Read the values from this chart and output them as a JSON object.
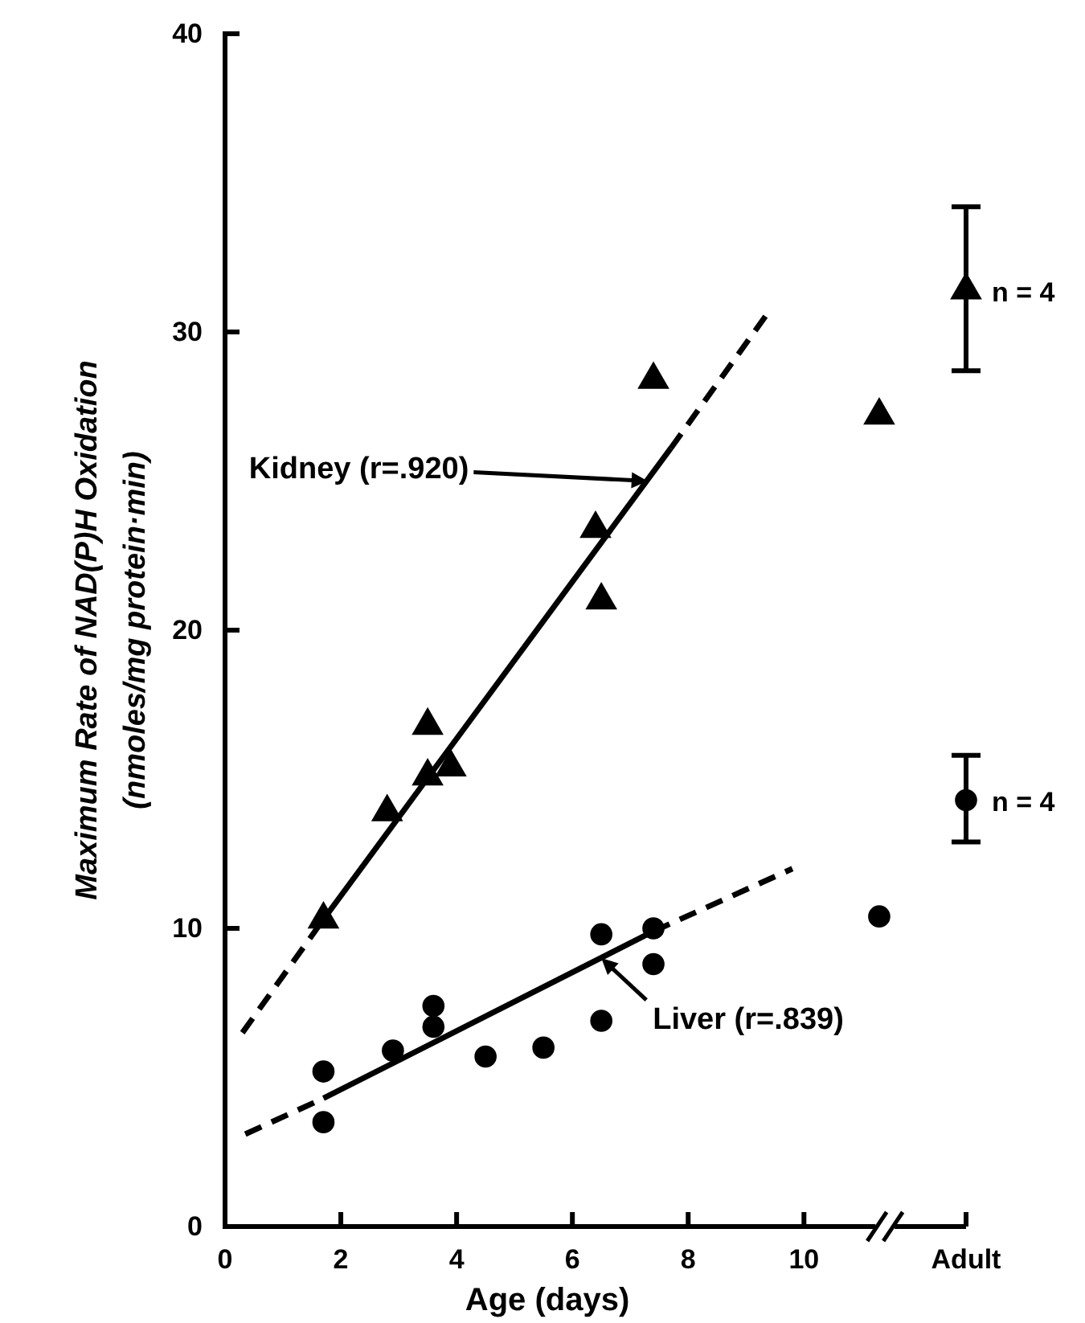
{
  "chart_data": {
    "type": "scatter",
    "xlabel": "Age (days)",
    "ylabel": "Maximum Rate of NAD(P)H Oxidation\n(nmoles/mg protein·min)",
    "xlim": [
      0,
      12.8
    ],
    "xticks": [
      0,
      2,
      4,
      6,
      8,
      10,
      {
        "value": 12.8,
        "label": "Adult"
      }
    ],
    "ylim": [
      0,
      40
    ],
    "yticks": [
      0,
      10,
      20,
      30,
      40
    ],
    "grid": false,
    "series": [
      {
        "marker": "triangle",
        "color": "#000000",
        "x": [
          1.7,
          2.8,
          3.5,
          3.5,
          3.9,
          6.4,
          6.5,
          7.4,
          11.3,
          12.8
        ],
        "values": [
          10.3,
          13.9,
          16.8,
          15.1,
          15.4,
          23.4,
          21.0,
          28.4,
          27.2,
          31.4
        ],
        "errors": [
          null,
          null,
          null,
          null,
          null,
          null,
          null,
          null,
          null,
          [
            28.7,
            34.2
          ]
        ]
      },
      {
        "marker": "circle",
        "color": "#000000",
        "x": [
          1.7,
          1.7,
          2.9,
          3.6,
          3.6,
          4.5,
          5.5,
          6.5,
          6.5,
          7.4,
          7.4,
          11.3,
          12.8
        ],
        "values": [
          5.2,
          3.5,
          5.9,
          7.4,
          6.7,
          5.7,
          6.0,
          9.8,
          6.9,
          10.0,
          8.8,
          10.4,
          14.3
        ],
        "errors": [
          null,
          null,
          null,
          null,
          null,
          null,
          null,
          null,
          null,
          null,
          null,
          null,
          [
            12.9,
            15.8
          ]
        ]
      },
      {
        "type": "line",
        "line_style": "dashed",
        "color": "#000000",
        "x": [
          0.3,
          1.7
        ],
        "values": [
          6.5,
          10.3
        ]
      },
      {
        "type": "line",
        "line_style": "solid",
        "color": "#000000",
        "x": [
          1.7,
          7.7
        ],
        "values": [
          10.3,
          26.1
        ]
      },
      {
        "type": "line",
        "line_style": "dashed",
        "color": "#000000",
        "x": [
          7.7,
          9.4
        ],
        "values": [
          26.1,
          30.7
        ]
      },
      {
        "type": "line",
        "line_style": "dashed",
        "color": "#000000",
        "x": [
          0.35,
          1.7
        ],
        "values": [
          3.1,
          4.3
        ]
      },
      {
        "type": "line",
        "line_style": "solid",
        "color": "#000000",
        "x": [
          1.7,
          7.4
        ],
        "values": [
          4.3,
          9.9
        ]
      },
      {
        "type": "line",
        "line_style": "dashed",
        "color": "#000000",
        "x": [
          7.4,
          9.8
        ],
        "values": [
          9.9,
          12.0
        ]
      }
    ],
    "annotations": [
      {
        "text": "Kidney (r=.920)",
        "x": 7.3,
        "y": 25.0
      },
      {
        "text": "Liver (r=.839)",
        "x": 6.5,
        "y": 9.0
      },
      {
        "text": "n = 4",
        "x": 12.8,
        "y": 31.4
      },
      {
        "text": "n = 4",
        "x": 12.8,
        "y": 14.3
      }
    ]
  }
}
